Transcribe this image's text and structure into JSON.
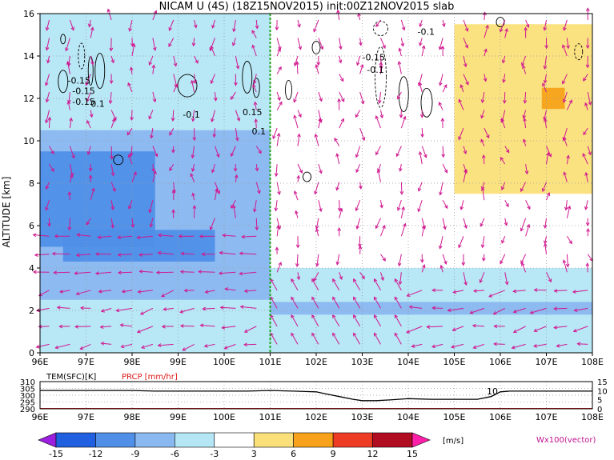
{
  "chart_data": [
    {
      "type": "heatmap",
      "title": "NICAM U (4S) (18Z15NOV2015) init:00Z12NOV2015 slab",
      "ylabel": "ALTITUDE [km]",
      "xlabel": "",
      "x_ticks": [
        "96E",
        "97E",
        "98E",
        "99E",
        "100E",
        "101E",
        "102E",
        "103E",
        "104E",
        "105E",
        "106E",
        "107E",
        "108E"
      ],
      "y_ticks": [
        "0",
        "2",
        "4",
        "6",
        "8",
        "10",
        "12",
        "14",
        "16"
      ],
      "xlim": [
        96,
        108
      ],
      "ylim": [
        0,
        16
      ],
      "grid": true,
      "marker_line_lon": 101,
      "contour_labels": [
        "-0.15",
        "-0.15",
        "-0.15",
        "-0.1",
        "0.15",
        "0.1",
        "-0.1",
        "-0.15",
        "-0.1",
        "0.1"
      ],
      "colorbar": {
        "labels": [
          "-15",
          "-12",
          "-9",
          "-6",
          "-3",
          "3",
          "6",
          "9",
          "12",
          "15"
        ],
        "unit": "[m/s]",
        "colors": [
          "#9c1fe0",
          "#1f5fe0",
          "#4f8fe8",
          "#8ab8f0",
          "#b4e6f6",
          "#ffffff",
          "#fbe07a",
          "#f7a21a",
          "#ee3b24",
          "#b00d22",
          "#ff1ea8"
        ]
      },
      "vector_legend": "Wx100(vector)",
      "regions": [
        {
          "value": -9,
          "lon": [
            96,
            98.5
          ],
          "alt": [
            5,
            9.5
          ]
        },
        {
          "value": -9,
          "lon": [
            96.5,
            99.8
          ],
          "alt": [
            4.3,
            5.8
          ]
        },
        {
          "value": -6,
          "lon": [
            96,
            101
          ],
          "alt": [
            2.5,
            10.5
          ]
        },
        {
          "value": -3,
          "lon": [
            96,
            101
          ],
          "alt": [
            0,
            16
          ]
        },
        {
          "value": -6,
          "lon": [
            101,
            108
          ],
          "alt": [
            1.8,
            2.4
          ]
        },
        {
          "value": -3,
          "lon": [
            101,
            108
          ],
          "alt": [
            0,
            4
          ]
        },
        {
          "value": 3,
          "lon": [
            105,
            108
          ],
          "alt": [
            7.5,
            15.5
          ]
        },
        {
          "value": 6,
          "lon": [
            106.9,
            107.4
          ],
          "alt": [
            11.5,
            12.5
          ]
        }
      ]
    },
    {
      "type": "line",
      "title": "",
      "legend": [
        "TEM(SFC)[K]",
        "PRCP [mm/hr]"
      ],
      "x_ticks": [
        "96E",
        "97E",
        "98E",
        "99E",
        "100E",
        "101E",
        "102E",
        "103E",
        "104E",
        "105E",
        "106E",
        "107E",
        "108E"
      ],
      "y_left_ticks": [
        "310",
        "305",
        "300",
        "295",
        "290"
      ],
      "y_right_ticks": [
        "15",
        "10",
        "5",
        "0"
      ],
      "annotation": "10",
      "series": [
        {
          "name": "TEM(SFC)[K]",
          "color": "#000000",
          "x": [
            96,
            96.5,
            97,
            97.5,
            98,
            98.5,
            99,
            99.5,
            100,
            100.5,
            101,
            101.5,
            102,
            102.2,
            102.5,
            102.8,
            103,
            103.3,
            103.6,
            104,
            104.5,
            105,
            105.5,
            105.8,
            106,
            106.2,
            106.5,
            107,
            107.5,
            108
          ],
          "y": [
            303.5,
            303.5,
            303.5,
            303.5,
            303.5,
            303,
            303,
            303,
            303,
            303,
            303.5,
            303,
            302.5,
            301,
            299,
            297,
            296,
            296,
            296.5,
            297.5,
            297,
            297,
            297,
            299,
            302.5,
            303,
            303,
            303,
            303,
            303
          ]
        },
        {
          "name": "PRCP [mm/hr]",
          "color": "#e01818",
          "x": [
            96,
            108
          ],
          "y": [
            0,
            0
          ]
        }
      ]
    }
  ]
}
